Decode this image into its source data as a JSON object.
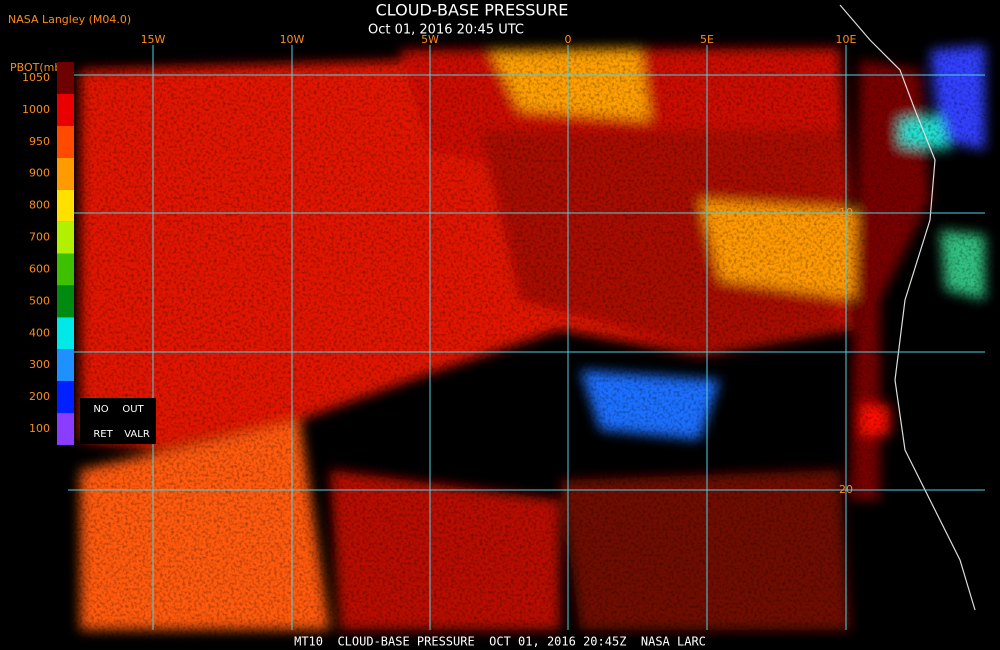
{
  "header": {
    "source": "NASA Langley (M04.0)",
    "title": "CLOUD-BASE PRESSURE",
    "subtitle": "Oct 01, 2016 20:45 UTC"
  },
  "longitude_labels": [
    "15W",
    "10W",
    "5W",
    "0",
    "5E",
    "10E"
  ],
  "latitude_labels": [
    "10",
    "20"
  ],
  "legend": {
    "title": "PBOT(mb)",
    "labels": [
      "1050",
      "1000",
      "950",
      "900",
      "800",
      "700",
      "600",
      "500",
      "400",
      "300",
      "200",
      "100"
    ],
    "colors": [
      "#6e0000",
      "#e80000",
      "#ff4a00",
      "#ff9a00",
      "#ffe000",
      "#b0f000",
      "#3cc000",
      "#008a10",
      "#00e8e8",
      "#1e90ff",
      "#0020ff",
      "#8a3cff"
    ],
    "flags": [
      "NO",
      "OUT",
      "RET",
      "VALR"
    ]
  },
  "footer": "MT10  CLOUD-BASE PRESSURE  OCT 01, 2016 20:45Z  NASA LARC"
}
